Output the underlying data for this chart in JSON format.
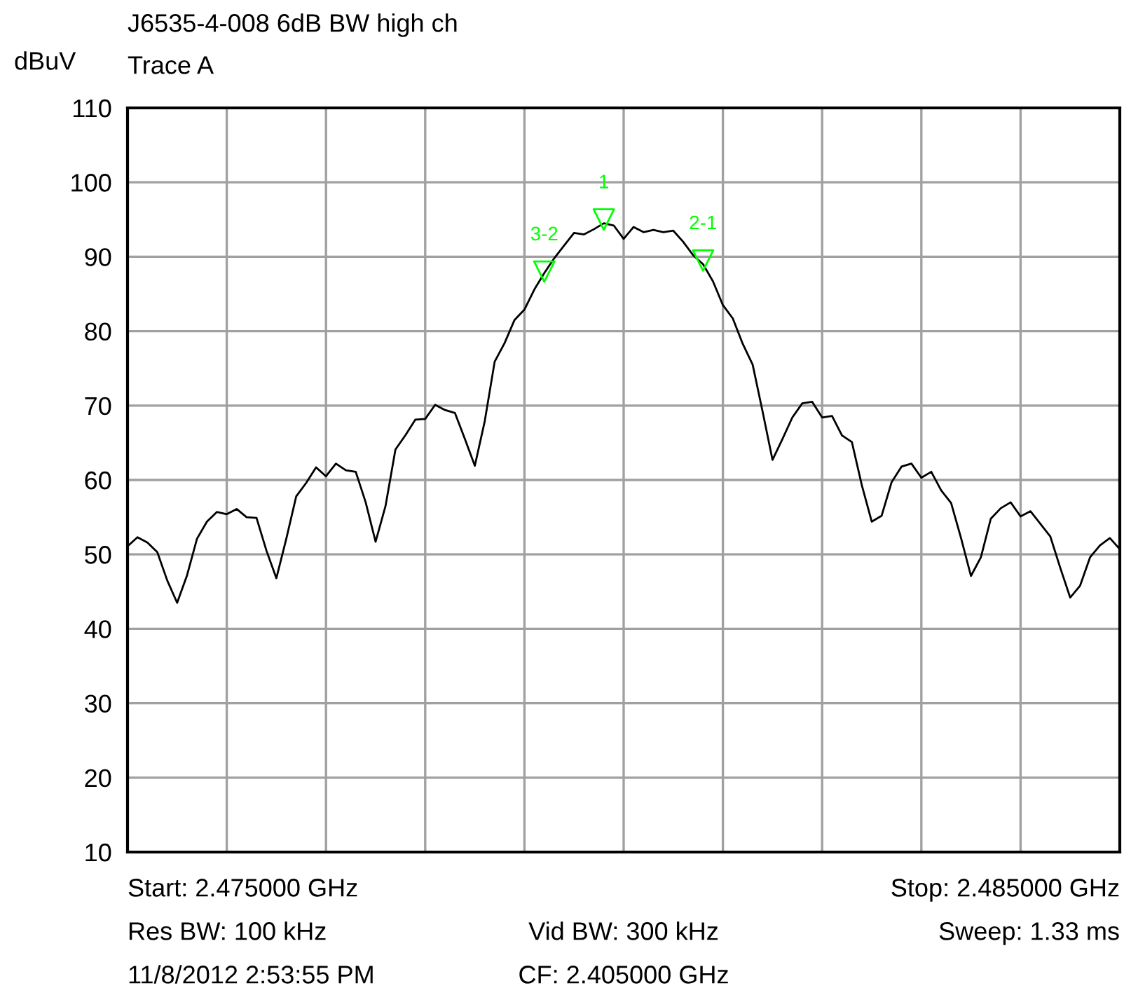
{
  "chart_data": {
    "type": "line",
    "title": "J6535-4-008 6dB BW high ch",
    "subtitle": "Trace A",
    "ylabel": "dBuV",
    "categories": [
      null,
      null,
      null,
      null,
      null,
      null,
      null,
      null,
      null,
      null,
      null,
      null,
      null,
      null,
      null,
      null,
      null,
      null,
      null,
      null,
      null,
      null,
      null,
      null,
      null,
      null,
      null,
      null,
      null,
      null,
      null,
      null,
      null,
      null,
      null,
      null,
      null,
      null,
      null,
      null,
      null,
      null,
      null,
      null,
      null,
      null,
      null,
      null,
      null,
      null,
      null,
      null,
      null,
      null,
      null,
      null,
      null,
      null,
      null,
      null,
      null,
      null,
      null,
      null,
      null,
      null,
      null,
      null,
      null,
      null,
      null,
      null,
      null,
      null,
      null,
      null,
      null,
      null,
      null,
      null,
      null,
      null,
      null,
      null,
      null,
      null,
      null,
      null,
      null,
      null,
      null,
      null,
      null,
      null,
      null,
      null,
      null,
      null,
      null,
      null,
      null
    ],
    "series": [
      {
        "color": "#000000",
        "values": [
          51.1,
          52.3,
          51.6,
          50.3,
          46.5,
          43.5,
          47.2,
          52.1,
          54.4,
          55.7,
          55.4,
          56.1,
          55.0,
          54.9,
          50.5,
          46.8,
          52.1,
          57.8,
          59.6,
          61.7,
          60.5,
          62.2,
          61.3,
          61.1,
          57.0,
          51.7,
          56.5,
          64.1,
          66.0,
          68.1,
          68.2,
          70.1,
          69.4,
          69.0,
          65.5,
          61.9,
          67.9,
          75.9,
          78.4,
          81.5,
          82.9,
          85.6,
          87.8,
          89.8,
          91.5,
          93.2,
          93.0,
          93.7,
          94.5,
          94.2,
          92.4,
          94.0,
          93.3,
          93.6,
          93.3,
          93.5,
          92.0,
          90.2,
          89.0,
          86.7,
          83.5,
          81.7,
          78.3,
          75.5,
          69.2,
          62.7,
          65.5,
          68.4,
          70.3,
          70.5,
          68.4,
          68.6,
          66.0,
          65.1,
          59.3,
          54.4,
          55.2,
          59.7,
          61.8,
          62.2,
          60.3,
          61.1,
          58.6,
          56.9,
          52.2,
          47.1,
          49.6,
          54.8,
          56.2,
          57.0,
          55.1,
          55.8,
          54.1,
          52.4,
          48.2,
          44.2,
          45.8,
          49.6,
          51.2,
          52.2,
          50.7
        ]
      },
      {
        "type": "scatter",
        "name": "3-2",
        "marker": "triangle",
        "color": "#00ff00",
        "values": [
          null,
          null,
          null,
          null,
          null,
          null,
          null,
          null,
          null,
          null,
          null,
          null,
          null,
          null,
          null,
          null,
          null,
          null,
          null,
          null,
          null,
          null,
          null,
          null,
          null,
          null,
          null,
          null,
          null,
          null,
          null,
          null,
          null,
          null,
          null,
          null,
          null,
          null,
          null,
          null,
          null,
          null,
          88,
          null,
          null,
          null,
          null,
          null,
          null,
          null,
          null,
          null,
          null,
          null,
          null,
          null,
          null,
          null,
          null,
          null,
          null,
          null,
          null,
          null,
          null,
          null,
          null,
          null,
          null,
          null,
          null,
          null,
          null,
          null,
          null,
          null,
          null,
          null,
          null,
          null,
          null,
          null,
          null,
          null,
          null,
          null,
          null,
          null,
          null,
          null,
          null,
          null,
          null,
          null,
          null,
          null,
          null,
          null,
          null,
          null,
          null
        ]
      },
      {
        "type": "scatter",
        "name": "1",
        "marker": "triangle",
        "color": "#00ff00",
        "values": [
          null,
          null,
          null,
          null,
          null,
          null,
          null,
          null,
          null,
          null,
          null,
          null,
          null,
          null,
          null,
          null,
          null,
          null,
          null,
          null,
          null,
          null,
          null,
          null,
          null,
          null,
          null,
          null,
          null,
          null,
          null,
          null,
          null,
          null,
          null,
          null,
          null,
          null,
          null,
          null,
          null,
          null,
          null,
          null,
          null,
          null,
          null,
          null,
          95,
          null,
          null,
          null,
          null,
          null,
          null,
          null,
          null,
          null,
          null,
          null,
          null,
          null,
          null,
          null,
          null,
          null,
          null,
          null,
          null,
          null,
          null,
          null,
          null,
          null,
          null,
          null,
          null,
          null,
          null,
          null,
          null,
          null,
          null,
          null,
          null,
          null,
          null,
          null,
          null,
          null,
          null,
          null,
          null,
          null,
          null,
          null,
          null,
          null,
          null,
          null,
          null
        ]
      },
      {
        "type": "scatter",
        "name": "2-1",
        "marker": "triangle",
        "color": "#00ff00",
        "values": [
          null,
          null,
          null,
          null,
          null,
          null,
          null,
          null,
          null,
          null,
          null,
          null,
          null,
          null,
          null,
          null,
          null,
          null,
          null,
          null,
          null,
          null,
          null,
          null,
          null,
          null,
          null,
          null,
          null,
          null,
          null,
          null,
          null,
          null,
          null,
          null,
          null,
          null,
          null,
          null,
          null,
          null,
          null,
          null,
          null,
          null,
          null,
          null,
          null,
          null,
          null,
          null,
          null,
          null,
          null,
          null,
          null,
          null,
          89.5,
          null,
          null,
          null,
          null,
          null,
          null,
          null,
          null,
          null,
          null,
          null,
          null,
          null,
          null,
          null,
          null,
          null,
          null,
          null,
          null,
          null,
          null,
          null,
          null,
          null,
          null,
          null,
          null,
          null,
          null,
          null,
          null,
          null,
          null,
          null,
          null,
          null,
          null,
          null,
          null,
          null,
          null
        ]
      }
    ],
    "ylim": [
      10,
      110
    ],
    "yticks": [
      10,
      20,
      30,
      40,
      50,
      60,
      70,
      80,
      90,
      100,
      110
    ],
    "grid": true,
    "tick_labels": "y",
    "annotations": [
      "Start: 2.475000 GHz",
      "Stop: 2.485000 GHz",
      "Res BW: 100 kHz",
      "Vid BW: 300 kHz",
      "Sweep: 1.33 ms",
      "11/8/2012 2:53:55 PM",
      "CF: 2.405000 GHz"
    ]
  }
}
